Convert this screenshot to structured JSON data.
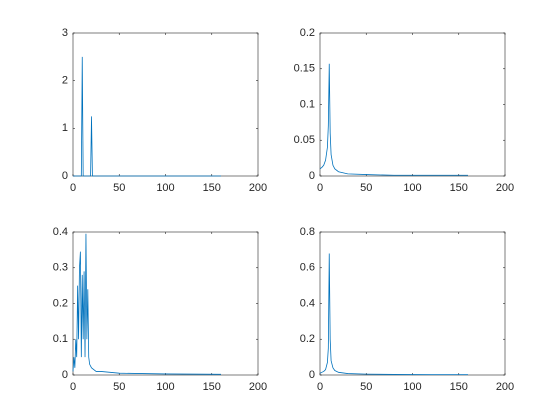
{
  "chart_data": [
    {
      "type": "line",
      "color": "#0072bd",
      "xlim": [
        0,
        200
      ],
      "xticks": [
        0,
        50,
        100,
        150,
        200
      ],
      "ylim": [
        0,
        3
      ],
      "yticks": [
        0,
        1,
        2,
        3
      ],
      "x": [
        0,
        9,
        10,
        11,
        19,
        20,
        21,
        160
      ],
      "values": [
        0,
        0,
        2.5,
        0,
        0,
        1.25,
        0,
        0
      ]
    },
    {
      "type": "line",
      "color": "#0072bd",
      "xlim": [
        0,
        200
      ],
      "xticks": [
        0,
        50,
        100,
        150,
        200
      ],
      "ylim": [
        0,
        0.2
      ],
      "yticks": [
        0,
        0.05,
        0.1,
        0.15,
        0.2
      ],
      "x": [
        0,
        2,
        4,
        6,
        8,
        9,
        10,
        11,
        12,
        14,
        16,
        20,
        30,
        50,
        80,
        120,
        160
      ],
      "values": [
        0.01,
        0.012,
        0.015,
        0.022,
        0.04,
        0.07,
        0.157,
        0.06,
        0.03,
        0.015,
        0.01,
        0.006,
        0.003,
        0.002,
        0.001,
        0.001,
        0.001
      ]
    },
    {
      "type": "line",
      "color": "#0072bd",
      "xlim": [
        0,
        200
      ],
      "xticks": [
        0,
        50,
        100,
        150,
        200
      ],
      "ylim": [
        0,
        0.4
      ],
      "yticks": [
        0,
        0.1,
        0.2,
        0.3,
        0.4
      ],
      "x": [
        0,
        1,
        2,
        3,
        4,
        5,
        6,
        7,
        8,
        9,
        10,
        11,
        12,
        13,
        14,
        15,
        16,
        17,
        18,
        20,
        25,
        30,
        50,
        100,
        160
      ],
      "values": [
        0.01,
        0.05,
        0.02,
        0.1,
        0.05,
        0.25,
        0.1,
        0.3,
        0.345,
        0.05,
        0.28,
        0.1,
        0.29,
        0.05,
        0.395,
        0.1,
        0.24,
        0.05,
        0.03,
        0.02,
        0.01,
        0.01,
        0.005,
        0.003,
        0.002
      ]
    },
    {
      "type": "line",
      "color": "#0072bd",
      "xlim": [
        0,
        200
      ],
      "xticks": [
        0,
        50,
        100,
        150,
        200
      ],
      "ylim": [
        0,
        0.8
      ],
      "yticks": [
        0,
        0.2,
        0.4,
        0.6,
        0.8
      ],
      "x": [
        0,
        2,
        4,
        6,
        8,
        9,
        10,
        11,
        12,
        14,
        16,
        20,
        30,
        50,
        80,
        120,
        160
      ],
      "values": [
        0.01,
        0.015,
        0.02,
        0.03,
        0.07,
        0.15,
        0.68,
        0.2,
        0.08,
        0.04,
        0.025,
        0.015,
        0.008,
        0.005,
        0.003,
        0.002,
        0.002
      ]
    }
  ]
}
